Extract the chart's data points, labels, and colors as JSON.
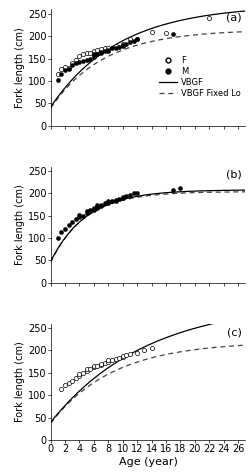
{
  "panels": [
    {
      "label": "(a)",
      "show_legend": true,
      "has_females": true,
      "has_males": true,
      "F_data": [
        [
          1,
          115
        ],
        [
          1.5,
          128
        ],
        [
          2,
          132
        ],
        [
          2.5,
          130
        ],
        [
          3,
          140
        ],
        [
          3.5,
          148
        ],
        [
          4,
          155
        ],
        [
          4.5,
          160
        ],
        [
          5,
          162
        ],
        [
          5.5,
          162
        ],
        [
          6,
          168
        ],
        [
          6.5,
          170
        ],
        [
          7,
          172
        ],
        [
          7.5,
          173
        ],
        [
          8,
          173
        ],
        [
          9,
          178
        ],
        [
          10,
          183
        ],
        [
          11,
          193
        ],
        [
          12,
          193
        ],
        [
          14,
          210
        ],
        [
          16,
          208
        ],
        [
          22,
          240
        ]
      ],
      "M_data": [
        [
          1,
          103
        ],
        [
          1.5,
          115
        ],
        [
          2,
          125
        ],
        [
          2.5,
          128
        ],
        [
          3,
          135
        ],
        [
          3.5,
          140
        ],
        [
          4,
          143
        ],
        [
          4.5,
          145
        ],
        [
          5,
          148
        ],
        [
          5.5,
          150
        ],
        [
          6,
          153
        ],
        [
          6,
          158
        ],
        [
          6,
          160
        ],
        [
          6.5,
          160
        ],
        [
          7,
          163
        ],
        [
          7,
          165
        ],
        [
          7.5,
          168
        ],
        [
          8,
          168
        ],
        [
          8,
          170
        ],
        [
          8.5,
          173
        ],
        [
          9,
          173
        ],
        [
          9.5,
          176
        ],
        [
          10,
          178
        ],
        [
          10,
          180
        ],
        [
          10.5,
          183
        ],
        [
          11,
          188
        ],
        [
          11.5,
          190
        ],
        [
          12,
          193
        ],
        [
          17,
          205
        ]
      ],
      "vbgf_params": {
        "Linf": 270,
        "K": 0.105,
        "t0": -1.6
      },
      "vbgf_fixed_params": {
        "Linf": 215,
        "K": 0.135,
        "t0": -1.5
      },
      "ylim": [
        0,
        260
      ],
      "yticks": [
        0,
        50,
        100,
        150,
        200,
        250
      ]
    },
    {
      "label": "(b)",
      "show_legend": false,
      "has_females": false,
      "has_males": true,
      "F_data": [],
      "M_data": [
        [
          1,
          100
        ],
        [
          1.5,
          113
        ],
        [
          2,
          120
        ],
        [
          2.5,
          130
        ],
        [
          3,
          137
        ],
        [
          3.5,
          143
        ],
        [
          4,
          147
        ],
        [
          4,
          152
        ],
        [
          4.5,
          150
        ],
        [
          5,
          155
        ],
        [
          5,
          160
        ],
        [
          5.5,
          162
        ],
        [
          6,
          163
        ],
        [
          6,
          165
        ],
        [
          6,
          168
        ],
        [
          6.5,
          168
        ],
        [
          6.5,
          175
        ],
        [
          7,
          172
        ],
        [
          7,
          175
        ],
        [
          7.5,
          178
        ],
        [
          8,
          178
        ],
        [
          8,
          182
        ],
        [
          8.5,
          183
        ],
        [
          9,
          183
        ],
        [
          9,
          185
        ],
        [
          9.5,
          188
        ],
        [
          10,
          190
        ],
        [
          10,
          192
        ],
        [
          10.5,
          195
        ],
        [
          11,
          197
        ],
        [
          11.5,
          200
        ],
        [
          12,
          200
        ],
        [
          17,
          208
        ],
        [
          18,
          213
        ]
      ],
      "vbgf_params": {
        "Linf": 208,
        "K": 0.2,
        "t0": -1.3
      },
      "vbgf_fixed_params": {
        "Linf": 204,
        "K": 0.21,
        "t0": -1.2
      },
      "ylim": [
        0,
        260
      ],
      "yticks": [
        0,
        50,
        100,
        150,
        200,
        250
      ]
    },
    {
      "label": "(c)",
      "show_legend": false,
      "has_females": true,
      "has_males": false,
      "F_data": [
        [
          1.5,
          113
        ],
        [
          2,
          122
        ],
        [
          2.5,
          128
        ],
        [
          3,
          132
        ],
        [
          3.5,
          138
        ],
        [
          4,
          143
        ],
        [
          4,
          148
        ],
        [
          4.5,
          150
        ],
        [
          5,
          153
        ],
        [
          5,
          158
        ],
        [
          5.5,
          158
        ],
        [
          6,
          162
        ],
        [
          6,
          165
        ],
        [
          6.5,
          165
        ],
        [
          7,
          168
        ],
        [
          7,
          170
        ],
        [
          7.5,
          172
        ],
        [
          8,
          175
        ],
        [
          8,
          178
        ],
        [
          8.5,
          178
        ],
        [
          9,
          180
        ],
        [
          9.5,
          183
        ],
        [
          10,
          185
        ],
        [
          10,
          188
        ],
        [
          10.5,
          190
        ],
        [
          11,
          193
        ],
        [
          12,
          195
        ],
        [
          13,
          200
        ],
        [
          14,
          205
        ]
      ],
      "M_data": [],
      "vbgf_params": {
        "Linf": 310,
        "K": 0.075,
        "t0": -1.8
      },
      "vbgf_fixed_params": {
        "Linf": 220,
        "K": 0.115,
        "t0": -1.6
      },
      "ylim": [
        0,
        260
      ],
      "yticks": [
        0,
        50,
        100,
        150,
        200,
        250
      ]
    }
  ],
  "xlim": [
    0,
    27
  ],
  "xticks": [
    0,
    2,
    4,
    6,
    8,
    10,
    12,
    14,
    16,
    18,
    20,
    22,
    24,
    26
  ],
  "xlabel": "Age (year)",
  "ylabel": "Fork length (cm)",
  "female_marker": "o",
  "male_marker": "o",
  "female_color": "white",
  "male_color": "black",
  "marker_size": 3,
  "vbgf_color": "#000000",
  "vbgf_fixed_color": "#444444",
  "font_size": 7
}
